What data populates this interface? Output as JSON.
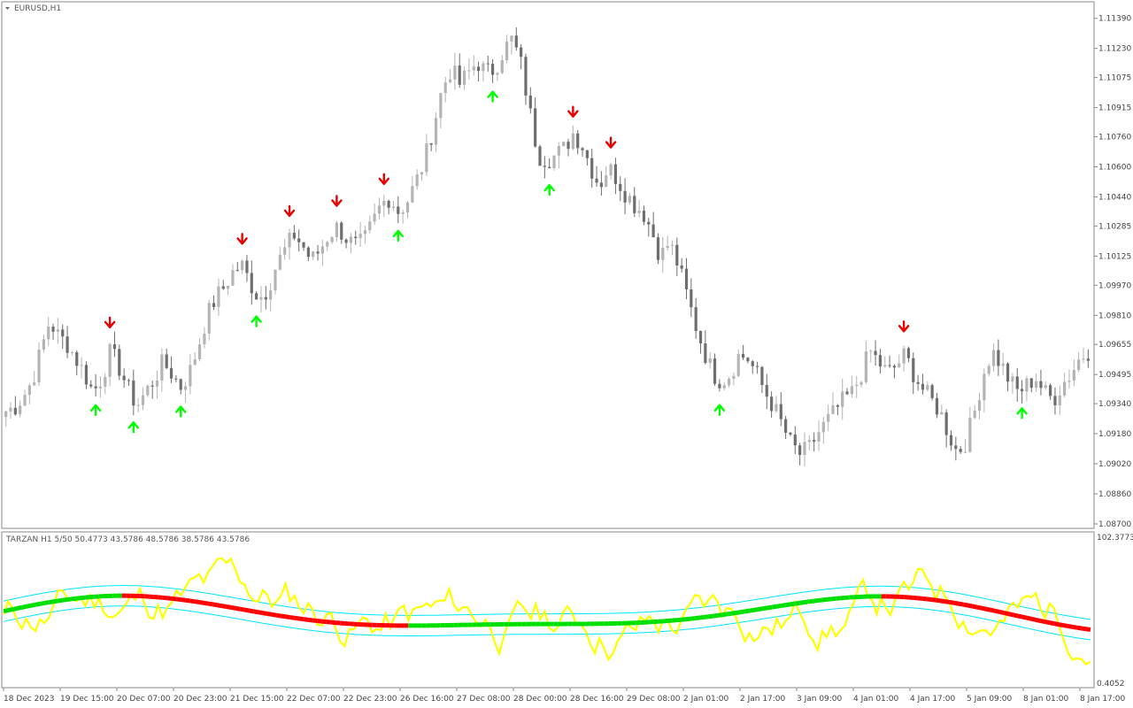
{
  "window": {
    "symbol_title": "EURUSD,H1",
    "indicator_title": "TARZAN H1 5/50 50.4773 43.5786 48.5786 38.5786 43.5786"
  },
  "colors": {
    "bull_candle": "#b4b4b4",
    "bear_candle": "#6e6e6e",
    "arrow_up": "#00ff00",
    "arrow_down": "#e60000",
    "rsi_line": "#ffff00",
    "band_line": "#00e5ff",
    "ma_up": "#00e000",
    "ma_down": "#ff0000",
    "grid": "#dddddd"
  },
  "chart_data": [
    {
      "type": "candlestick",
      "title": "EURUSD,H1",
      "ylim": [
        1.087,
        1.1145
      ],
      "price_ticks": [
        "1.11390",
        "1.11230",
        "1.11075",
        "1.10915",
        "1.10760",
        "1.10600",
        "1.10440",
        "1.10285",
        "1.10125",
        "1.09970",
        "1.09810",
        "1.09655",
        "1.09495",
        "1.09340",
        "1.09180",
        "1.09020",
        "1.08860",
        "1.08700"
      ],
      "time_ticks": [
        "18 Dec 2023",
        "19 Dec 15:00",
        "20 Dec 07:00",
        "20 Dec 23:00",
        "21 Dec 15:00",
        "22 Dec 07:00",
        "22 Dec 23:00",
        "26 Dec 16:00",
        "27 Dec 08:00",
        "28 Dec 00:00",
        "28 Dec 16:00",
        "29 Dec 08:00",
        "2 Jan 01:00",
        "2 Jan 17:00",
        "3 Jan 09:00",
        "4 Jan 01:00",
        "4 Jan 17:00",
        "5 Jan 09:00",
        "8 Jan 01:00",
        "8 Jan 17:00"
      ],
      "close_path": [
        1.093,
        1.0932,
        1.0938,
        1.0946,
        1.0962,
        1.0978,
        1.097,
        1.0966,
        1.0958,
        1.095,
        1.094,
        1.0948,
        1.0962,
        1.0953,
        1.0942,
        1.0933,
        1.094,
        1.0947,
        1.0956,
        1.095,
        1.0943,
        1.095,
        1.0964,
        1.098,
        1.099,
        1.0996,
        1.1004,
        1.1008,
        1.0998,
        1.099,
        1.0995,
        1.1008,
        1.1016,
        1.1024,
        1.1018,
        1.101,
        1.1016,
        1.1024,
        1.1028,
        1.1022,
        1.1018,
        1.102,
        1.103,
        1.104,
        1.1044,
        1.1036,
        1.1042,
        1.1052,
        1.1064,
        1.1082,
        1.1102,
        1.1112,
        1.1104,
        1.111,
        1.1116,
        1.111,
        1.1112,
        1.1122,
        1.1128,
        1.1115,
        1.109,
        1.1066,
        1.1064,
        1.1066,
        1.107,
        1.1078,
        1.1072,
        1.106,
        1.105,
        1.106,
        1.1054,
        1.1046,
        1.104,
        1.1036,
        1.1026,
        1.1012,
        1.102,
        1.1008,
        1.0992,
        1.0976,
        1.0962,
        1.095,
        1.0946,
        1.095,
        1.096,
        1.0958,
        1.095,
        1.094,
        1.0932,
        1.0922,
        1.0912,
        1.0907,
        1.091,
        1.0918,
        1.0924,
        1.093,
        1.0936,
        1.094,
        1.095,
        1.0962,
        1.0956,
        1.095,
        1.0954,
        1.096,
        1.095,
        1.0942,
        1.0936,
        1.093,
        1.0918,
        1.0908,
        1.0914,
        1.093,
        1.095,
        1.0962,
        1.0955,
        1.0946,
        1.094,
        1.0944,
        1.0948,
        1.094,
        1.0936,
        1.0944,
        1.095,
        1.0958,
        1.0962
      ]
    },
    {
      "type": "line",
      "title": "TARZAN H1 5/50 50.4773 43.5786 48.5786 38.5786 43.5786",
      "ylim": [
        0.4052,
        102.3773
      ],
      "max_label": "102.3773",
      "min_label": "0.4052"
    }
  ]
}
